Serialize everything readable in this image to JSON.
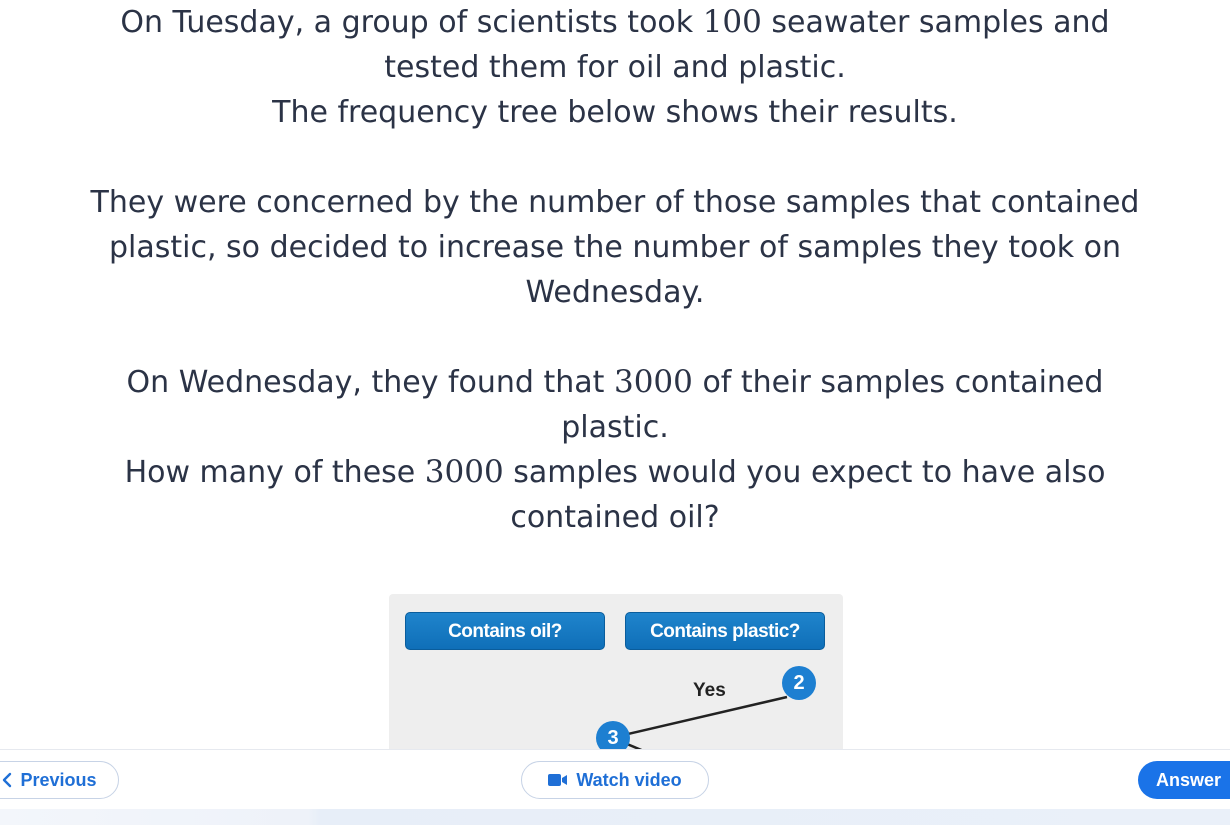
{
  "question": {
    "p1_pre": "On Tuesday, a group of scientists took",
    "p1_num": "100",
    "p1_post": "seawater samples and",
    "p1_line2": "tested them for oil and plastic.",
    "p2": "The frequency tree below shows their results.",
    "p3_line1": "They were concerned by the number of those samples that contained",
    "p3_line2": "plastic, so decided to increase the number of samples they took on",
    "p3_line3": "Wednesday.",
    "p4_pre": "On Wednesday, they found that",
    "p4_num": "3000",
    "p4_post": "of their samples contained",
    "p4_line2": "plastic.",
    "p5_pre": "How many of these",
    "p5_num": "3000",
    "p5_post": "samples would you expect to have also",
    "p5_line2": "contained oil?"
  },
  "tree": {
    "header_oil": "Contains oil?",
    "header_plastic": "Contains plastic?",
    "branch_label": "Yes",
    "node_right": "2",
    "node_left": "3",
    "badge_color": "#1d7fd1",
    "header_color": "#1877c2"
  },
  "nav": {
    "previous": "Previous",
    "watch_video": "Watch video",
    "answer": "Answer",
    "accent": "#1a73e8",
    "icons": {
      "previous": "chevron-left-icon",
      "video": "video-camera-icon"
    }
  }
}
